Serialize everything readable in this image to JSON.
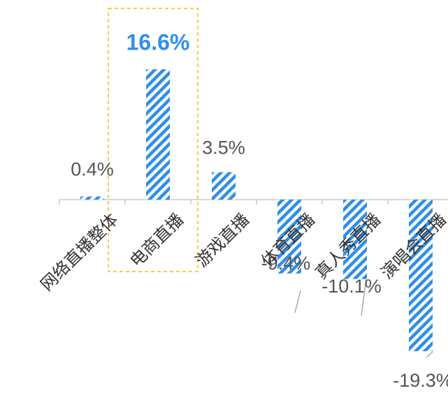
{
  "chart_data": {
    "type": "bar",
    "categories": [
      "网络直播整体",
      "电商直播",
      "游戏直播",
      "体育直播",
      "真人秀直播",
      "演唱会直播"
    ],
    "values": [
      0.4,
      16.6,
      3.5,
      -9.4,
      -10.1,
      -19.3
    ],
    "value_labels": [
      "0.4%",
      "16.6%",
      "3.5%",
      "-9.4%",
      "-10.1%",
      "-19.3%"
    ],
    "highlight_category": "电商直播",
    "title": "",
    "xlabel": "",
    "ylabel": "",
    "grid": false,
    "legend": "none",
    "colors": {
      "bar": "#2f8fe6",
      "highlight_label": "#2f8fe6",
      "label": "#555555",
      "axis": "#c8c8c8",
      "highlight_box": "#f2c200",
      "leader": "#aaaaaa"
    }
  }
}
